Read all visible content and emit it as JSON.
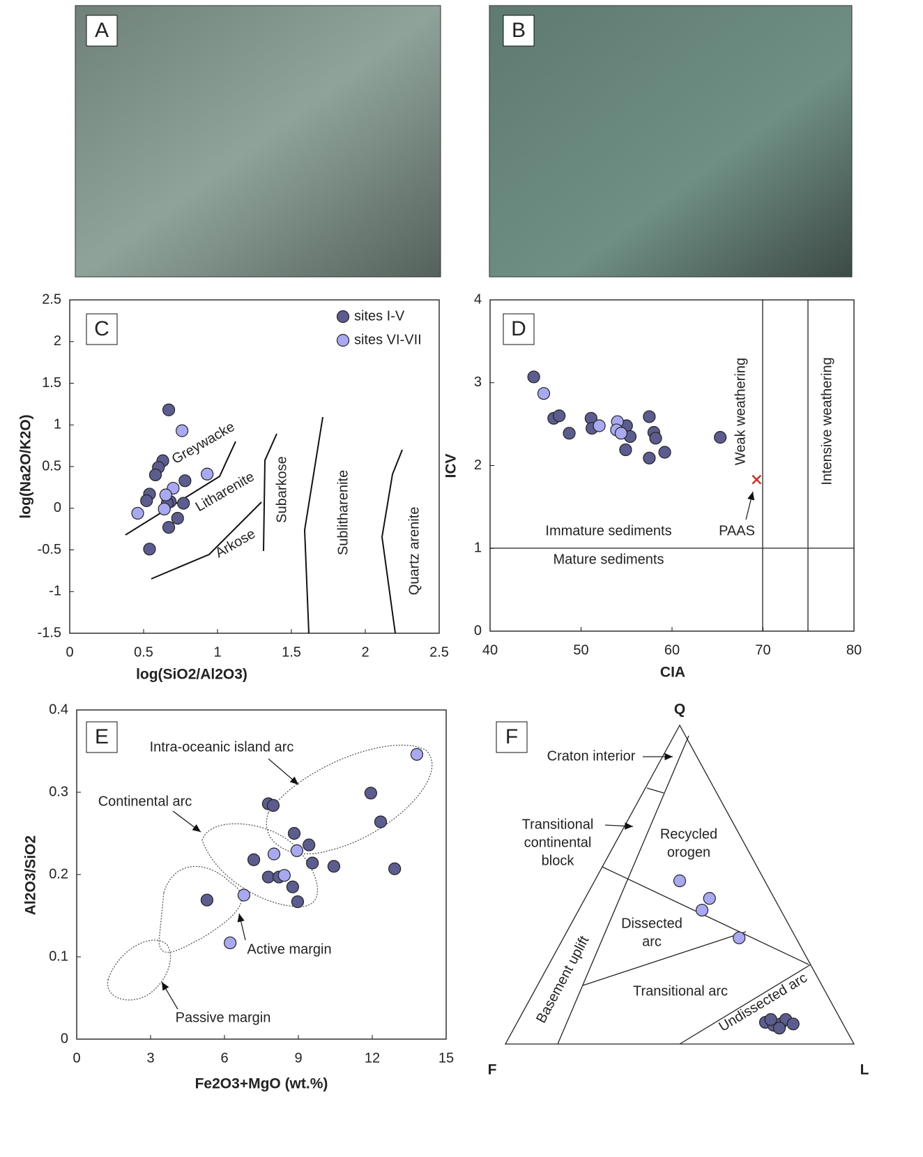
{
  "figure": {
    "photos": [
      {
        "label": "A"
      },
      {
        "label": "B"
      }
    ]
  },
  "chart_data": [
    {
      "type": "scatter",
      "label": "C",
      "xlabel": "log(SiO2/Al2O3)",
      "ylabel": "log(Na2O/K2O)",
      "xlim": [
        0,
        2.5
      ],
      "xticks": [
        0,
        0.5,
        1,
        1.5,
        2,
        2.5
      ],
      "ylim": [
        -1.5,
        2.5
      ],
      "yticks": [
        -1.5,
        -1,
        -0.5,
        0,
        0.5,
        1,
        1.5,
        2,
        2.5
      ],
      "legend": "upper right",
      "fields": [
        "Greywacke",
        "Litharenite",
        "Arkose",
        "Subarkose",
        "Sublitharenite",
        "Quartz arenite"
      ],
      "series": [
        {
          "name": "sites I-V",
          "color": "#5c5c8e",
          "x": [
            0.67,
            0.63,
            0.6,
            0.58,
            0.78,
            0.54,
            0.52,
            0.68,
            0.66,
            0.77,
            0.73,
            0.67,
            0.54
          ],
          "values": [
            1.18,
            0.57,
            0.49,
            0.4,
            0.33,
            0.17,
            0.09,
            0.08,
            0.06,
            0.06,
            -0.12,
            -0.23,
            -0.49
          ]
        },
        {
          "name": "sites VI-VII",
          "color": "#a9a9f2",
          "x": [
            0.76,
            0.93,
            0.7,
            0.65,
            0.64,
            0.46
          ],
          "values": [
            0.93,
            0.41,
            0.24,
            0.16,
            -0.01,
            -0.06
          ]
        }
      ]
    },
    {
      "type": "scatter",
      "label": "D",
      "xlabel": "CIA",
      "ylabel": "ICV",
      "xlim": [
        40,
        80
      ],
      "xticks": [
        40,
        50,
        60,
        70,
        80
      ],
      "ylim": [
        0,
        4
      ],
      "yticks": [
        0,
        1,
        2,
        3,
        4
      ],
      "annotations": [
        "Weak weathering",
        "Intensive weathering",
        "Immature sediments",
        "Mature sediments"
      ],
      "reference": {
        "label": "PAAS",
        "x": 69.3,
        "y": 1.83,
        "color": "#c0392b"
      },
      "series": [
        {
          "color": "#5c5c8e",
          "x": [
            44.8,
            47.0,
            47.6,
            48.7,
            51.1,
            51.2,
            55.0,
            55.4,
            54.9,
            57.5,
            58.0,
            58.2,
            57.5,
            59.2,
            65.3
          ],
          "values": [
            3.07,
            2.57,
            2.6,
            2.39,
            2.57,
            2.45,
            2.48,
            2.35,
            2.19,
            2.59,
            2.4,
            2.33,
            2.09,
            2.16,
            2.34
          ]
        },
        {
          "color": "#a9a9f2",
          "x": [
            45.9,
            52.0,
            54.0,
            53.9,
            54.4
          ],
          "values": [
            2.87,
            2.48,
            2.53,
            2.43,
            2.39
          ]
        }
      ]
    },
    {
      "type": "scatter",
      "label": "E",
      "xlabel": "Fe2O3+MgO (wt.%)",
      "ylabel": "Al2O3/SiO2",
      "xlim": [
        0,
        15
      ],
      "xticks": [
        0,
        3,
        6,
        9,
        12,
        15
      ],
      "ylim": [
        0,
        0.4
      ],
      "yticks": [
        0,
        0.1,
        0.2,
        0.3,
        0.4
      ],
      "annotations": [
        "Intra-oceanic island arc",
        "Continental arc",
        "Active margin",
        "Passive margin"
      ],
      "series": [
        {
          "color": "#5c5c8e",
          "x": [
            5.29,
            7.19,
            7.78,
            7.78,
            7.98,
            8.21,
            8.77,
            8.83,
            8.97,
            9.43,
            9.57,
            10.44,
            11.94,
            12.34,
            12.91
          ],
          "values": [
            0.169,
            0.218,
            0.197,
            0.286,
            0.284,
            0.197,
            0.185,
            0.25,
            0.167,
            0.236,
            0.214,
            0.21,
            0.299,
            0.264,
            0.207
          ]
        },
        {
          "color": "#a9a9f2",
          "x": [
            13.81,
            8.94,
            8.01,
            8.43,
            6.79,
            6.23
          ],
          "values": [
            0.346,
            0.229,
            0.225,
            0.199,
            0.175,
            0.117
          ]
        }
      ]
    },
    {
      "type": "ternary",
      "label": "F",
      "apices": [
        "Q",
        "F",
        "L"
      ],
      "fields": [
        [
          "Craton interior"
        ],
        [
          "Transitional",
          "continental",
          "block"
        ],
        [
          "Recycled",
          "orogen"
        ],
        [
          "Dissected",
          "arc"
        ],
        [
          "Transitional arc"
        ],
        [
          "Undissected arc"
        ],
        [
          "Basement uplift"
        ]
      ],
      "series": [
        {
          "color": "#a9a9f2",
          "q": [
            51.2,
            45.7,
            42.0,
            33.3
          ],
          "f": [
            24.4,
            18.6,
            22.6,
            16.3
          ],
          "l": [
            24.4,
            35.7,
            35.4,
            50.4
          ]
        },
        {
          "color": "#5c5c8e",
          "q": [
            6.8,
            5.9,
            6.3,
            7.7,
            6.3,
            5.0,
            7.7
          ],
          "f": [
            22.0,
            20.1,
            17.9,
            15.7,
            14.3,
            18.9,
            20.0
          ],
          "l": [
            71.2,
            74.0,
            75.8,
            76.6,
            79.4,
            76.1,
            72.3
          ]
        }
      ]
    }
  ]
}
